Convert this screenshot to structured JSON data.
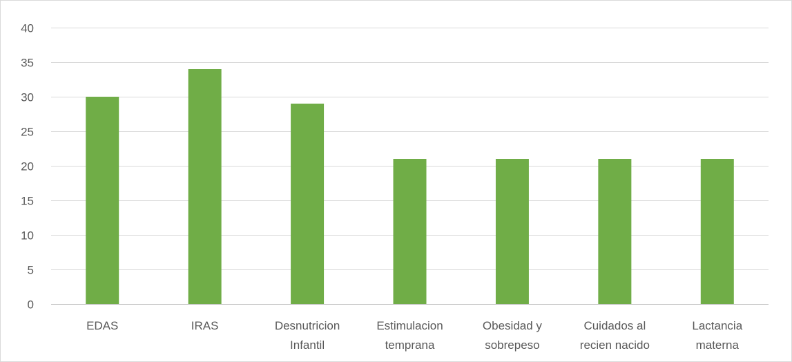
{
  "chart_data": {
    "type": "bar",
    "categories": [
      "EDAS",
      "IRAS",
      "Desnutricion Infantil",
      "Estimulacion temprana",
      "Obesidad y sobrepeso",
      "Cuidados al recien nacido",
      "Lactancia materna"
    ],
    "category_lines": [
      [
        "EDAS"
      ],
      [
        "IRAS"
      ],
      [
        "Desnutricion",
        "Infantil"
      ],
      [
        "Estimulacion",
        "temprana"
      ],
      [
        "Obesidad y",
        "sobrepeso"
      ],
      [
        "Cuidados al",
        "recien nacido"
      ],
      [
        "Lactancia",
        "materna"
      ]
    ],
    "series": [
      {
        "values": [
          30,
          34,
          29,
          21,
          21,
          21,
          21
        ]
      }
    ],
    "title": "",
    "xlabel": "",
    "ylabel": "",
    "ylim": [
      0,
      40
    ],
    "yticks": [
      "0",
      "5",
      "10",
      "15",
      "20",
      "25",
      "30",
      "35",
      "40"
    ],
    "grid": true,
    "legend": "none",
    "bar_color": "#70ad47"
  }
}
